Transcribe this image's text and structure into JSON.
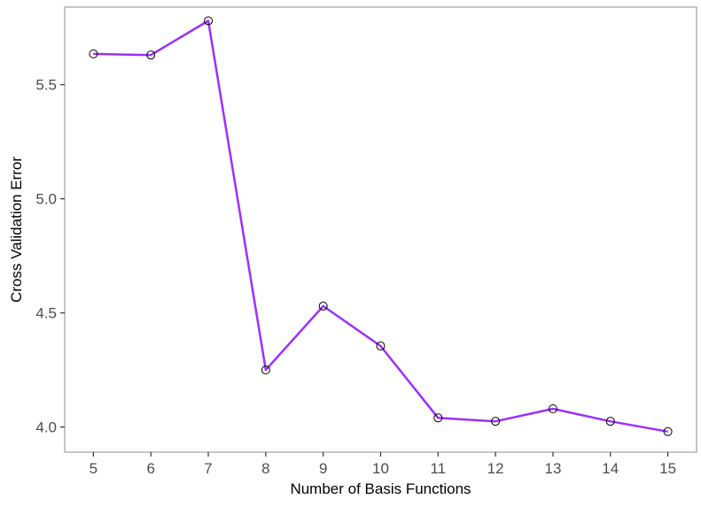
{
  "chart_data": {
    "type": "line",
    "title": "",
    "xlabel": "Number of Basis Functions",
    "ylabel": "Cross Validation Error",
    "x": [
      5,
      6,
      7,
      8,
      9,
      10,
      11,
      12,
      13,
      14,
      15
    ],
    "series": [
      {
        "values": [
          5.635,
          5.63,
          5.78,
          4.25,
          4.53,
          4.355,
          4.04,
          4.025,
          4.08,
          4.025,
          3.98
        ]
      }
    ],
    "xlim": [
      4.5,
      15.5
    ],
    "ylim": [
      3.89,
      5.84
    ],
    "xticks": [
      "5",
      "6",
      "7",
      "8",
      "9",
      "10",
      "11",
      "12",
      "13",
      "14",
      "15"
    ],
    "yticks": [
      "4.0",
      "4.5",
      "5.0",
      "5.5"
    ],
    "grid": false,
    "legend": "none",
    "colors": {
      "line": "#9b30ff",
      "marker_stroke": "#000000",
      "panel_border": "#b3b3b3",
      "tick_text": "#4d4d4d",
      "axis_title": "#000000"
    }
  }
}
